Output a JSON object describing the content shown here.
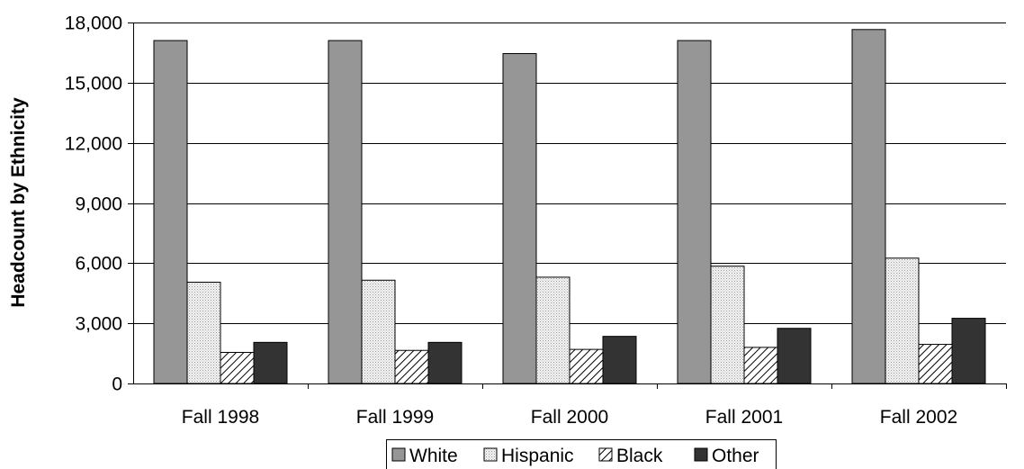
{
  "chart_data": {
    "type": "bar",
    "title": "",
    "xlabel": "",
    "ylabel": "Headcount by Ethnicity",
    "ylim": [
      0,
      18000
    ],
    "yticks": [
      0,
      3000,
      6000,
      9000,
      12000,
      15000,
      18000
    ],
    "ytick_labels": [
      "0",
      "3,000",
      "6,000",
      "9,000",
      "12,000",
      "15,000",
      "18,000"
    ],
    "grid": true,
    "legend_position": "bottom",
    "categories": [
      "Fall 1998",
      "Fall 1999",
      "Fall 2000",
      "Fall 2001",
      "Fall 2002"
    ],
    "series": [
      {
        "name": "White",
        "values": [
          17100,
          17100,
          16450,
          17100,
          17650
        ],
        "fill": "#969696",
        "pattern": "solid"
      },
      {
        "name": "Hispanic",
        "values": [
          5050,
          5150,
          5300,
          5850,
          6250
        ],
        "fill": "#e6e6e6",
        "pattern": "dots"
      },
      {
        "name": "Black",
        "values": [
          1550,
          1650,
          1700,
          1800,
          1950
        ],
        "fill": "#ffffff",
        "pattern": "diagonal-hatch"
      },
      {
        "name": "Other",
        "values": [
          2050,
          2050,
          2350,
          2750,
          3250
        ],
        "fill": "#333333",
        "pattern": "solid"
      }
    ]
  }
}
